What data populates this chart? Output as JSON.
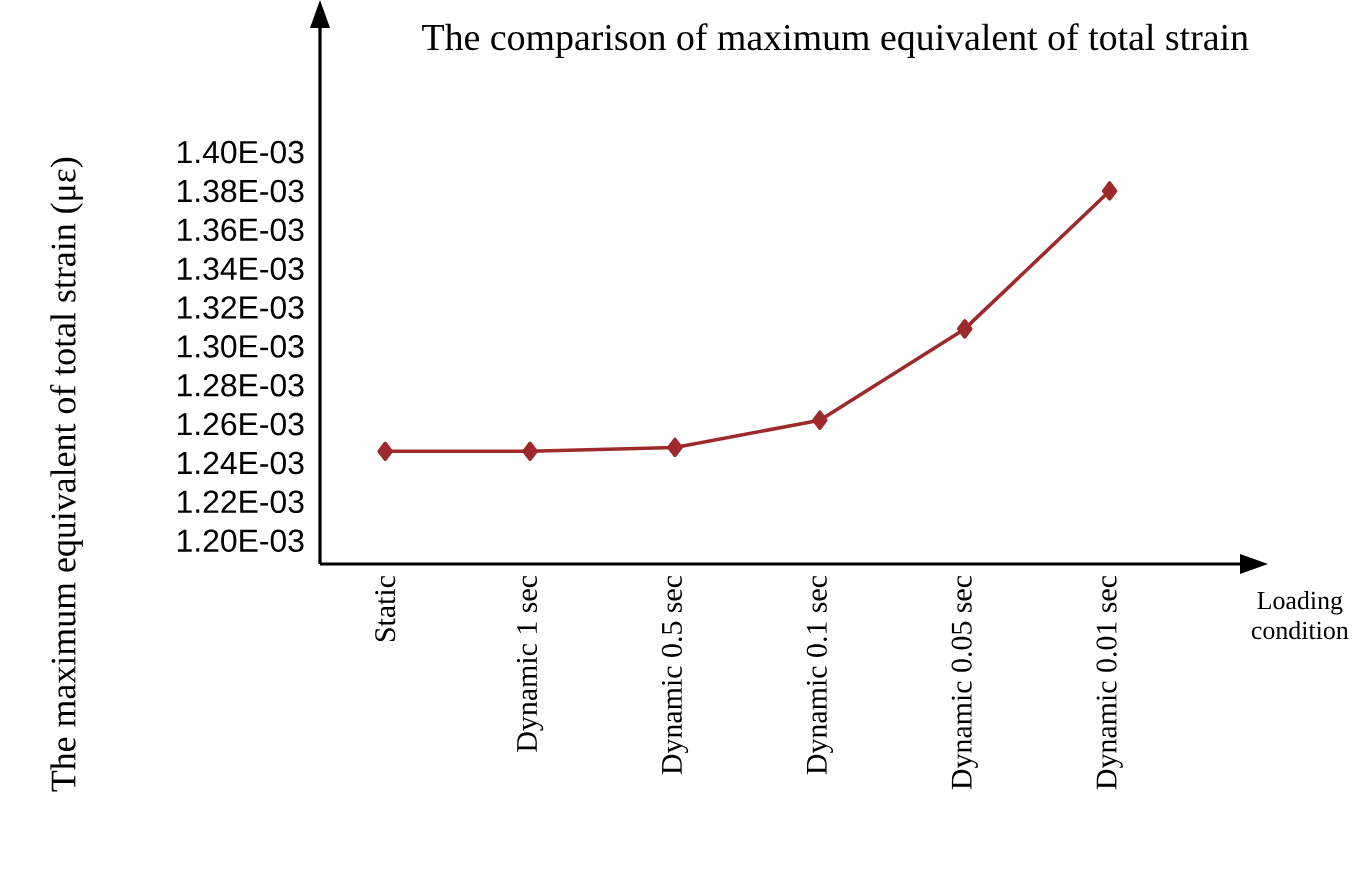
{
  "chart_data": {
    "type": "line",
    "title": "The comparison of maximum equivalent of total strain",
    "xlabel": "Loading condition",
    "ylabel": "The maximum equivalent of total strain (με)",
    "categories": [
      "Static",
      "Dynamic 1 sec",
      "Dynamic 0.5 sec",
      "Dynamic 0.1 sec",
      "Dynamic 0.05 sec",
      "Dynamic 0.01 sec"
    ],
    "series": [
      {
        "color": "#9e2a2b",
        "values": [
          0.001246,
          0.001246,
          0.001248,
          0.001262,
          0.001309,
          0.00138
        ]
      }
    ],
    "ylim": [
      0.001188,
      0.001468
    ],
    "yticks": [
      {
        "value": 0.0012,
        "label": "1.20E-03"
      },
      {
        "value": 0.00122,
        "label": "1.22E-03"
      },
      {
        "value": 0.00124,
        "label": "1.24E-03"
      },
      {
        "value": 0.00126,
        "label": "1.26E-03"
      },
      {
        "value": 0.00128,
        "label": "1.28E-03"
      },
      {
        "value": 0.0013,
        "label": "1.30E-03"
      },
      {
        "value": 0.00132,
        "label": "1.32E-03"
      },
      {
        "value": 0.00134,
        "label": "1.34E-03"
      },
      {
        "value": 0.00136,
        "label": "1.36E-03"
      },
      {
        "value": 0.00138,
        "label": "1.38E-03"
      },
      {
        "value": 0.0014,
        "label": "1.40E-03"
      }
    ],
    "marker": "diamond",
    "line_style": "solid"
  }
}
